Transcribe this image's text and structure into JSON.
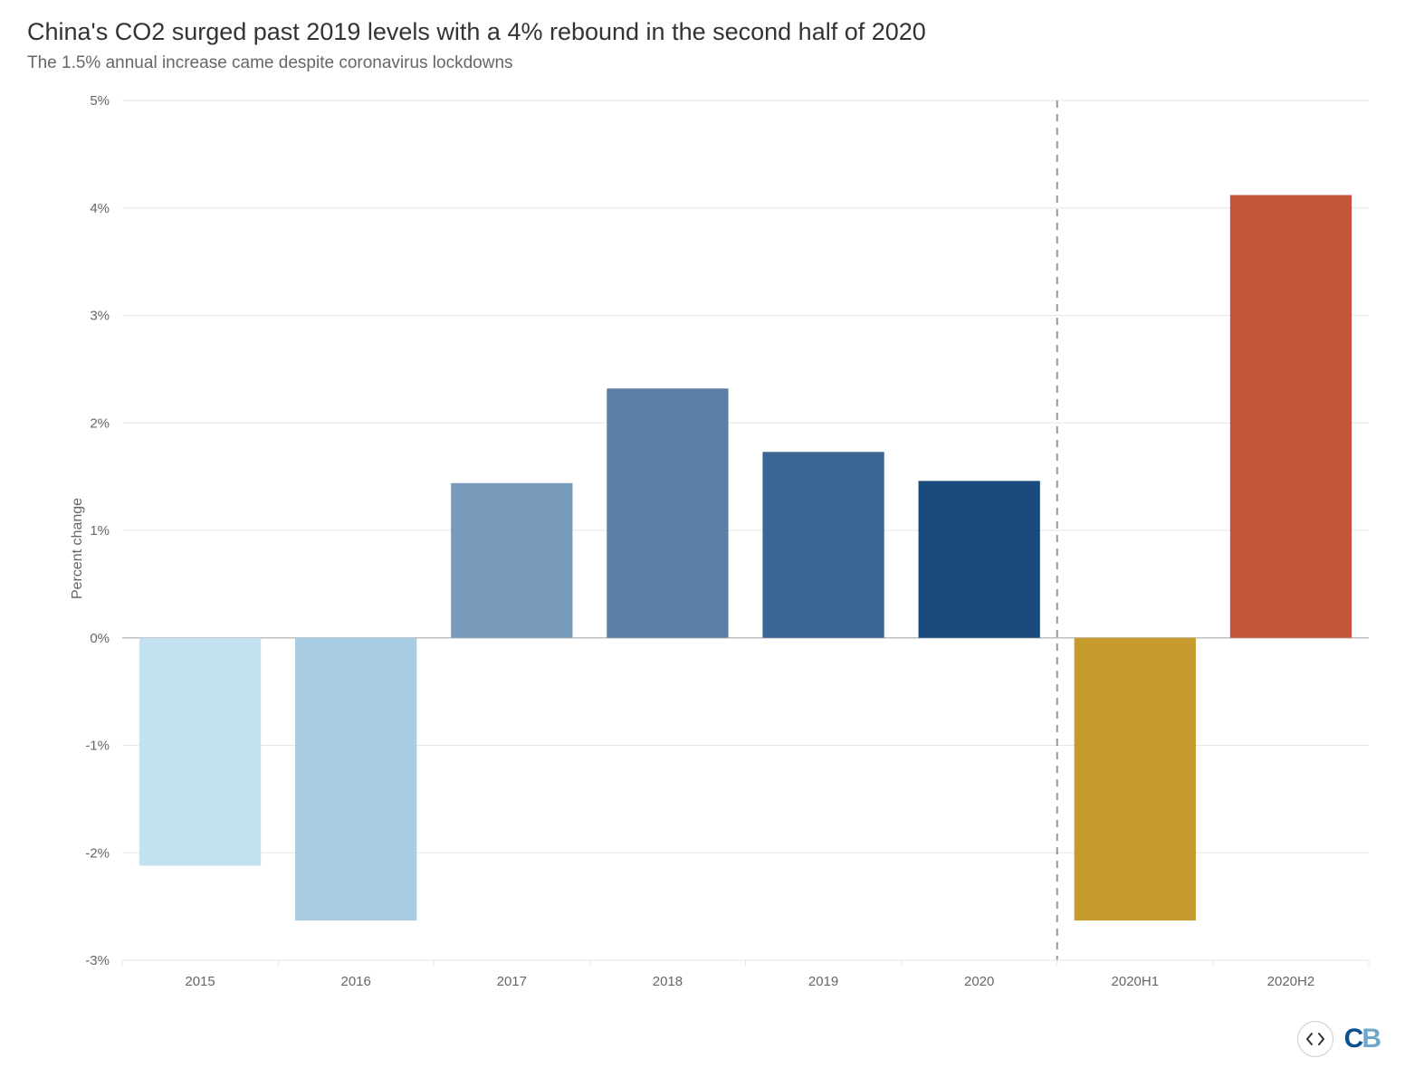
{
  "title": "China's CO2 surged past 2019 levels with a 4% rebound in the second half of 2020",
  "subtitle": "The 1.5% annual increase came despite coronavirus lockdowns",
  "chart": {
    "type": "bar",
    "ylabel": "Percent change",
    "ylim": [
      -3,
      5
    ],
    "ytick_step": 1,
    "ytick_labels": [
      "-3%",
      "-2%",
      "-1%",
      "0%",
      "1%",
      "2%",
      "3%",
      "4%",
      "5%"
    ],
    "categories": [
      "2015",
      "2016",
      "2017",
      "2018",
      "2019",
      "2020",
      "2020H1",
      "2020H2"
    ],
    "values": [
      -2.12,
      -2.63,
      1.44,
      2.32,
      1.73,
      1.46,
      -2.63,
      4.12
    ],
    "bar_colors": [
      "#c4e1f2",
      "#a8cce2",
      "#789bbb",
      "#5b7fa6",
      "#3a6694",
      "#184a7b",
      "#c79a2e",
      "#c4543a"
    ],
    "divider_after_index": 5,
    "background_color": "#ffffff",
    "grid_color": "#e6e6e6",
    "zero_line_color": "#bfbfbf",
    "divider_color": "#999999",
    "axis_label_color": "#666666",
    "label_fontsize": 16,
    "tick_fontsize": 15,
    "bar_width_ratio": 0.78
  },
  "footer": {
    "embed_icon": "code-icon",
    "logo_text_c": "C",
    "logo_text_b": "B"
  }
}
